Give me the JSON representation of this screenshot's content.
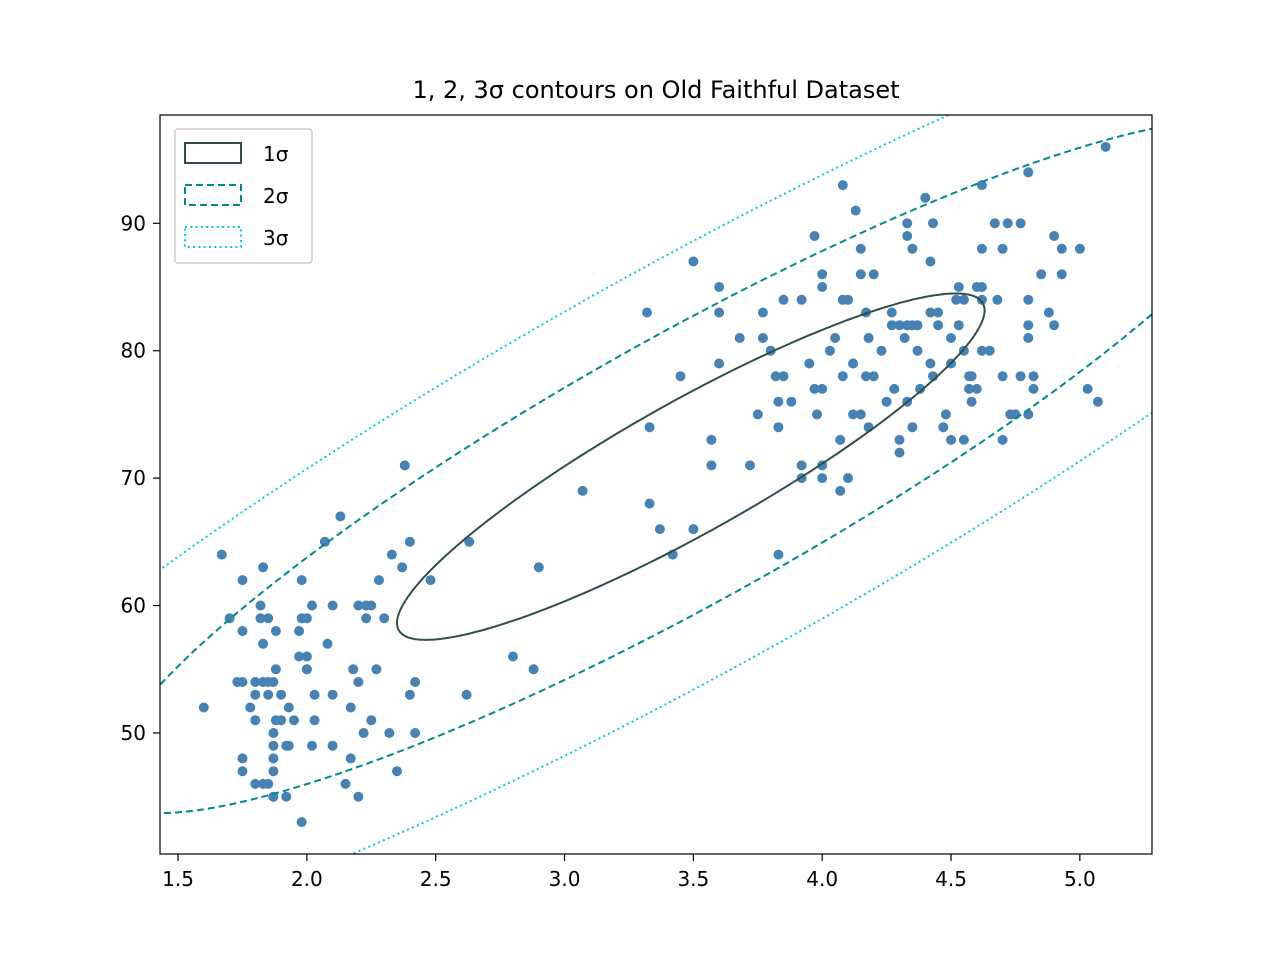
{
  "chart_data": {
    "type": "scatter",
    "title": "1, 2, 3σ contours on Old Faithful Dataset",
    "xlabel": "",
    "ylabel": "",
    "xlim": [
      1.43,
      5.28
    ],
    "ylim": [
      40.5,
      98.5
    ],
    "xticks": [
      1.5,
      2.0,
      2.5,
      3.0,
      3.5,
      4.0,
      4.5,
      5.0
    ],
    "xtick_labels": [
      "1.5",
      "2.0",
      "2.5",
      "3.0",
      "3.5",
      "4.0",
      "4.5",
      "5.0"
    ],
    "yticks": [
      50,
      60,
      70,
      80,
      90
    ],
    "ytick_labels": [
      "50",
      "60",
      "70",
      "80",
      "90"
    ],
    "grid": false,
    "legend_position": "top-left",
    "colors": {
      "points": "#4682b4",
      "sigma1": "#2f4f4f",
      "sigma2": "#008b8b",
      "sigma3": "#00ced1"
    },
    "gaussian": {
      "mean": [
        3.49,
        70.9
      ],
      "cov": [
        [
          1.3,
          13.98
        ],
        [
          13.98,
          184.8
        ]
      ]
    },
    "series": [
      {
        "name": "1σ",
        "type": "contour",
        "sigma": 1,
        "style": "solid"
      },
      {
        "name": "2σ",
        "type": "contour",
        "sigma": 2,
        "style": "dashed"
      },
      {
        "name": "3σ",
        "type": "contour",
        "sigma": 3,
        "style": "dotted"
      }
    ],
    "points": [
      [
        1.6,
        52
      ],
      [
        1.67,
        64
      ],
      [
        1.7,
        59
      ],
      [
        1.73,
        54
      ],
      [
        1.75,
        54
      ],
      [
        1.75,
        62
      ],
      [
        1.75,
        58
      ],
      [
        1.75,
        48
      ],
      [
        1.75,
        47
      ],
      [
        1.78,
        52
      ],
      [
        1.8,
        54
      ],
      [
        1.8,
        53
      ],
      [
        1.8,
        51
      ],
      [
        1.8,
        46
      ],
      [
        1.82,
        60
      ],
      [
        1.82,
        59
      ],
      [
        1.83,
        57
      ],
      [
        1.83,
        54
      ],
      [
        1.83,
        46
      ],
      [
        1.83,
        63
      ],
      [
        1.85,
        59
      ],
      [
        1.85,
        54
      ],
      [
        1.85,
        53
      ],
      [
        1.85,
        46
      ],
      [
        1.87,
        54
      ],
      [
        1.87,
        50
      ],
      [
        1.87,
        49
      ],
      [
        1.87,
        48
      ],
      [
        1.87,
        47
      ],
      [
        1.87,
        45
      ],
      [
        1.88,
        51
      ],
      [
        1.88,
        58
      ],
      [
        1.88,
        55
      ],
      [
        1.9,
        51
      ],
      [
        1.9,
        53
      ],
      [
        1.92,
        49
      ],
      [
        1.92,
        45
      ],
      [
        1.93,
        52
      ],
      [
        1.93,
        49
      ],
      [
        1.95,
        51
      ],
      [
        1.97,
        58
      ],
      [
        1.97,
        56
      ],
      [
        1.98,
        62
      ],
      [
        1.98,
        59
      ],
      [
        2.0,
        59
      ],
      [
        2.0,
        56
      ],
      [
        2.0,
        55
      ],
      [
        1.98,
        43
      ],
      [
        2.0,
        55
      ],
      [
        2.02,
        60
      ],
      [
        2.02,
        49
      ],
      [
        2.03,
        53
      ],
      [
        2.03,
        51
      ],
      [
        2.07,
        65
      ],
      [
        2.08,
        57
      ],
      [
        2.1,
        60
      ],
      [
        2.1,
        53
      ],
      [
        2.1,
        49
      ],
      [
        2.13,
        67
      ],
      [
        2.15,
        46
      ],
      [
        2.17,
        52
      ],
      [
        2.17,
        48
      ],
      [
        2.18,
        55
      ],
      [
        2.2,
        60
      ],
      [
        2.2,
        54
      ],
      [
        2.2,
        45
      ],
      [
        2.22,
        50
      ],
      [
        2.23,
        60
      ],
      [
        2.23,
        59
      ],
      [
        2.25,
        60
      ],
      [
        2.25,
        51
      ],
      [
        2.27,
        55
      ],
      [
        2.28,
        62
      ],
      [
        2.3,
        59
      ],
      [
        2.32,
        50
      ],
      [
        2.33,
        64
      ],
      [
        2.35,
        47
      ],
      [
        2.37,
        63
      ],
      [
        2.38,
        71
      ],
      [
        2.4,
        65
      ],
      [
        2.4,
        53
      ],
      [
        2.42,
        54
      ],
      [
        2.42,
        50
      ],
      [
        2.48,
        62
      ],
      [
        2.62,
        53
      ],
      [
        2.63,
        65
      ],
      [
        2.8,
        56
      ],
      [
        2.88,
        55
      ],
      [
        2.9,
        63
      ],
      [
        3.07,
        69
      ],
      [
        3.32,
        83
      ],
      [
        3.33,
        74
      ],
      [
        3.33,
        68
      ],
      [
        3.37,
        66
      ],
      [
        3.42,
        64
      ],
      [
        3.45,
        78
      ],
      [
        3.5,
        66
      ],
      [
        3.5,
        87
      ],
      [
        3.57,
        73
      ],
      [
        3.57,
        71
      ],
      [
        3.6,
        85
      ],
      [
        3.6,
        83
      ],
      [
        3.6,
        79
      ],
      [
        3.68,
        81
      ],
      [
        3.72,
        71
      ],
      [
        3.75,
        75
      ],
      [
        3.77,
        83
      ],
      [
        3.77,
        81
      ],
      [
        3.8,
        80
      ],
      [
        3.82,
        78
      ],
      [
        3.83,
        76
      ],
      [
        3.83,
        74
      ],
      [
        3.83,
        64
      ],
      [
        3.85,
        84
      ],
      [
        3.85,
        78
      ],
      [
        3.88,
        76
      ],
      [
        3.92,
        84
      ],
      [
        3.92,
        71
      ],
      [
        3.92,
        70
      ],
      [
        3.95,
        79
      ],
      [
        3.97,
        89
      ],
      [
        3.97,
        77
      ],
      [
        3.98,
        75
      ],
      [
        4.0,
        86
      ],
      [
        4.0,
        85
      ],
      [
        4.0,
        77
      ],
      [
        4.0,
        71
      ],
      [
        4.0,
        70
      ],
      [
        4.03,
        80
      ],
      [
        4.05,
        81
      ],
      [
        4.07,
        73
      ],
      [
        4.07,
        69
      ],
      [
        4.08,
        93
      ],
      [
        4.08,
        84
      ],
      [
        4.08,
        78
      ],
      [
        4.1,
        84
      ],
      [
        4.1,
        70
      ],
      [
        4.12,
        79
      ],
      [
        4.12,
        75
      ],
      [
        4.13,
        91
      ],
      [
        4.15,
        88
      ],
      [
        4.15,
        86
      ],
      [
        4.15,
        75
      ],
      [
        4.17,
        83
      ],
      [
        4.17,
        78
      ],
      [
        4.18,
        81
      ],
      [
        4.18,
        74
      ],
      [
        4.2,
        86
      ],
      [
        4.2,
        78
      ],
      [
        4.23,
        80
      ],
      [
        4.25,
        76
      ],
      [
        4.27,
        83
      ],
      [
        4.27,
        82
      ],
      [
        4.28,
        77
      ],
      [
        4.3,
        82
      ],
      [
        4.3,
        73
      ],
      [
        4.3,
        72
      ],
      [
        4.32,
        81
      ],
      [
        4.33,
        89
      ],
      [
        4.33,
        90
      ],
      [
        4.33,
        82
      ],
      [
        4.33,
        76
      ],
      [
        4.35,
        88
      ],
      [
        4.35,
        82
      ],
      [
        4.35,
        74
      ],
      [
        4.37,
        82
      ],
      [
        4.37,
        80
      ],
      [
        4.38,
        77
      ],
      [
        4.4,
        92
      ],
      [
        4.42,
        87
      ],
      [
        4.42,
        83
      ],
      [
        4.42,
        79
      ],
      [
        4.43,
        90
      ],
      [
        4.43,
        78
      ],
      [
        4.45,
        83
      ],
      [
        4.45,
        82
      ],
      [
        4.47,
        74
      ],
      [
        4.48,
        75
      ],
      [
        4.5,
        81
      ],
      [
        4.5,
        79
      ],
      [
        4.5,
        73
      ],
      [
        4.52,
        84
      ],
      [
        4.53,
        85
      ],
      [
        4.53,
        82
      ],
      [
        4.55,
        84
      ],
      [
        4.55,
        80
      ],
      [
        4.55,
        73
      ],
      [
        4.57,
        78
      ],
      [
        4.57,
        77
      ],
      [
        4.58,
        76
      ],
      [
        4.58,
        78
      ],
      [
        4.6,
        85
      ],
      [
        4.6,
        77
      ],
      [
        4.62,
        93
      ],
      [
        4.62,
        88
      ],
      [
        4.62,
        85
      ],
      [
        4.62,
        84
      ],
      [
        4.62,
        80
      ],
      [
        4.65,
        80
      ],
      [
        4.67,
        90
      ],
      [
        4.68,
        84
      ],
      [
        4.7,
        88
      ],
      [
        4.7,
        78
      ],
      [
        4.7,
        73
      ],
      [
        4.72,
        90
      ],
      [
        4.73,
        75
      ],
      [
        4.75,
        75
      ],
      [
        4.77,
        90
      ],
      [
        4.77,
        78
      ],
      [
        4.8,
        94
      ],
      [
        4.8,
        84
      ],
      [
        4.8,
        82
      ],
      [
        4.8,
        81
      ],
      [
        4.8,
        75
      ],
      [
        4.82,
        78
      ],
      [
        4.82,
        77
      ],
      [
        4.85,
        86
      ],
      [
        4.88,
        83
      ],
      [
        4.9,
        89
      ],
      [
        4.9,
        82
      ],
      [
        4.93,
        88
      ],
      [
        4.93,
        86
      ],
      [
        5.0,
        88
      ],
      [
        5.03,
        77
      ],
      [
        5.07,
        76
      ],
      [
        5.1,
        96
      ]
    ]
  }
}
